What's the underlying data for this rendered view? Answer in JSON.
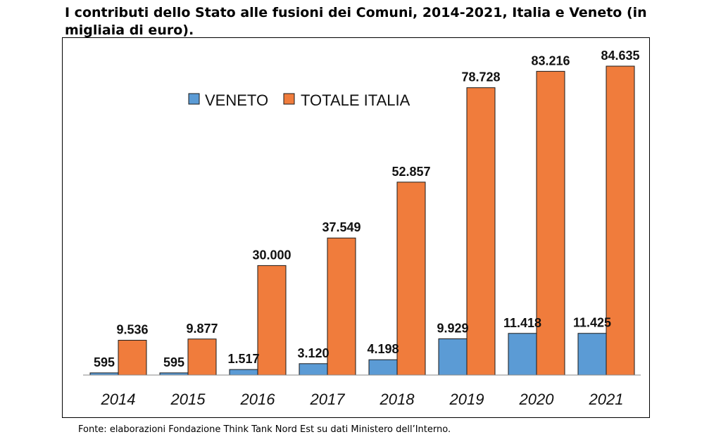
{
  "title": "I contributi dello Stato alle fusioni dei Comuni, 2014-2021, Italia e Veneto (in migliaia di euro).",
  "source": "Fonte: elaborazioni Fondazione Think Tank Nord Est su dati Ministero dell’Interno.",
  "colors": {
    "veneto": "#5b9bd5",
    "italia": "#f07c3c"
  },
  "chart_data": {
    "type": "bar",
    "title": "I contributi dello Stato alle fusioni dei Comuni, 2014-2021, Italia e Veneto (in migliaia di euro).",
    "categories": [
      "2014",
      "2015",
      "2016",
      "2017",
      "2018",
      "2019",
      "2020",
      "2021"
    ],
    "series": [
      {
        "name": "VENETO",
        "values": [
          595,
          595,
          1517,
          3120,
          4198,
          9929,
          11418,
          11425
        ],
        "labels": [
          "595",
          "595",
          "1.517",
          "3.120",
          "4.198",
          "9.929",
          "11.418",
          "11.425"
        ]
      },
      {
        "name": "TOTALE ITALIA",
        "values": [
          9536,
          9877,
          30000,
          37549,
          52857,
          78728,
          83216,
          84635
        ],
        "labels": [
          "9.536",
          "9.877",
          "30.000",
          "37.549",
          "52.857",
          "78.728",
          "83.216",
          "84.635"
        ]
      }
    ],
    "ylim": [
      0,
      84635
    ],
    "grid": false,
    "legend": "top-left"
  }
}
